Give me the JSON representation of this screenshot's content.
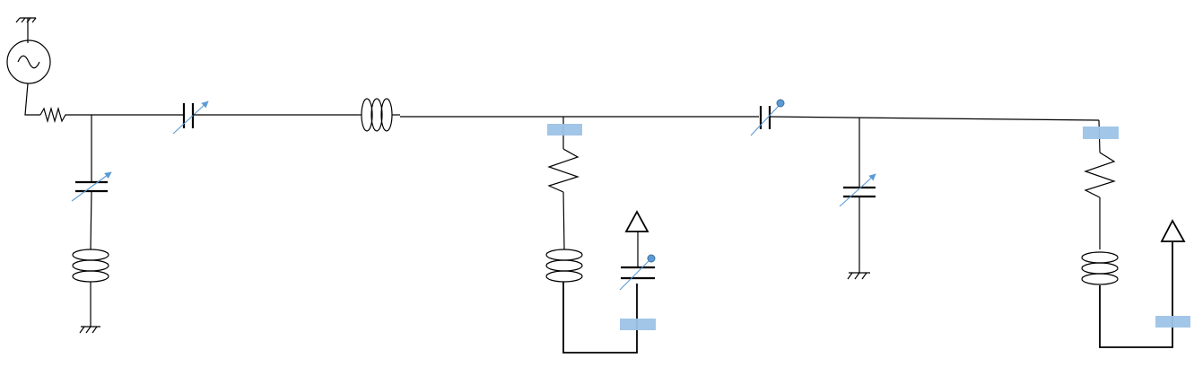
{
  "diagram": {
    "components": [
      {
        "id": "source",
        "icon": "ac-voltage-source-icon"
      },
      {
        "id": "ground",
        "icon": "ground-icon"
      },
      {
        "id": "resistor",
        "icon": "resistor-icon"
      },
      {
        "id": "inductor",
        "icon": "inductor-icon"
      },
      {
        "id": "variable-capacitor",
        "icon": "variable-capacitor-icon"
      },
      {
        "id": "capacitor-with-tap",
        "icon": "capacitor-tap-icon"
      },
      {
        "id": "output-terminal",
        "icon": "triangle-terminal-icon"
      },
      {
        "id": "connection-pad",
        "icon": "connection-pad-icon"
      }
    ],
    "colors": {
      "wire": "#000000",
      "adjust_arrow": "#5b9bd5",
      "tap_dot": "#5b9bd5",
      "pad": "#9dc3e6"
    }
  }
}
